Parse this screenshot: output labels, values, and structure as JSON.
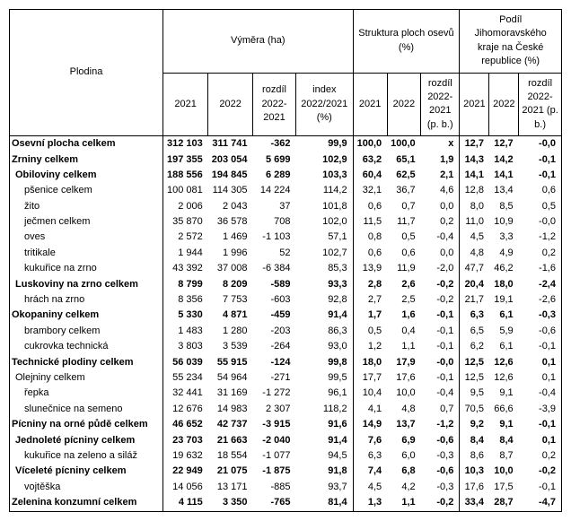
{
  "header": {
    "corner": "Plodina",
    "groups": [
      {
        "label": "Výměra (ha)",
        "cols": [
          "2021",
          "2022",
          "rozdíl 2022-2021",
          "index 2022/2021 (%)"
        ]
      },
      {
        "label": "Struktura ploch osevů (%)",
        "cols": [
          "2021",
          "2022",
          "rozdíl 2022-2021 (p. b.)"
        ]
      },
      {
        "label": "Podíl Jihomoravského kraje na České republice (%)",
        "cols": [
          "2021",
          "2022",
          "rozdíl 2022-2021 (p. b.)"
        ]
      }
    ]
  },
  "rows": [
    {
      "name": "Osevní plocha celkem",
      "bold": true,
      "indent": 0,
      "v": [
        "312 103",
        "311 741",
        "-362",
        "99,9",
        "100,0",
        "100,0",
        "x",
        "12,7",
        "12,7",
        "-0,0"
      ]
    },
    {
      "name": "Zrniny celkem",
      "bold": true,
      "indent": 0,
      "v": [
        "197 355",
        "203 054",
        "5 699",
        "102,9",
        "63,2",
        "65,1",
        "1,9",
        "14,3",
        "14,2",
        "-0,1"
      ]
    },
    {
      "name": "Obiloviny celkem",
      "bold": true,
      "indent": 1,
      "v": [
        "188 556",
        "194 845",
        "6 289",
        "103,3",
        "60,4",
        "62,5",
        "2,1",
        "14,1",
        "14,1",
        "-0,1"
      ]
    },
    {
      "name": "pšenice celkem",
      "bold": false,
      "indent": 2,
      "v": [
        "100 081",
        "114 305",
        "14 224",
        "114,2",
        "32,1",
        "36,7",
        "4,6",
        "12,8",
        "13,4",
        "0,6"
      ]
    },
    {
      "name": "žito",
      "bold": false,
      "indent": 2,
      "v": [
        "2 006",
        "2 043",
        "37",
        "101,8",
        "0,6",
        "0,7",
        "0,0",
        "8,0",
        "8,5",
        "0,5"
      ]
    },
    {
      "name": "ječmen celkem",
      "bold": false,
      "indent": 2,
      "v": [
        "35 870",
        "36 578",
        "708",
        "102,0",
        "11,5",
        "11,7",
        "0,2",
        "11,0",
        "10,9",
        "-0,0"
      ]
    },
    {
      "name": "oves",
      "bold": false,
      "indent": 2,
      "v": [
        "2 572",
        "1 469",
        "-1 103",
        "57,1",
        "0,8",
        "0,5",
        "-0,4",
        "4,5",
        "3,3",
        "-1,2"
      ]
    },
    {
      "name": "tritikale",
      "bold": false,
      "indent": 2,
      "v": [
        "1 944",
        "1 996",
        "52",
        "102,7",
        "0,6",
        "0,6",
        "0,0",
        "4,8",
        "4,9",
        "0,2"
      ]
    },
    {
      "name": "kukuřice na zrno",
      "bold": false,
      "indent": 2,
      "v": [
        "43 392",
        "37 008",
        "-6 384",
        "85,3",
        "13,9",
        "11,9",
        "-2,0",
        "47,7",
        "46,2",
        "-1,6"
      ]
    },
    {
      "name": "Luskoviny na zrno celkem",
      "bold": true,
      "indent": 1,
      "v": [
        "8 799",
        "8 209",
        "-589",
        "93,3",
        "2,8",
        "2,6",
        "-0,2",
        "20,4",
        "18,0",
        "-2,4"
      ]
    },
    {
      "name": "hrách na zrno",
      "bold": false,
      "indent": 2,
      "v": [
        "8 356",
        "7 753",
        "-603",
        "92,8",
        "2,7",
        "2,5",
        "-0,2",
        "21,7",
        "19,1",
        "-2,6"
      ]
    },
    {
      "name": "Okopaniny celkem",
      "bold": true,
      "indent": 0,
      "v": [
        "5 330",
        "4 871",
        "-459",
        "91,4",
        "1,7",
        "1,6",
        "-0,1",
        "6,3",
        "6,1",
        "-0,3"
      ]
    },
    {
      "name": "brambory celkem",
      "bold": false,
      "indent": 2,
      "v": [
        "1 483",
        "1 280",
        "-203",
        "86,3",
        "0,5",
        "0,4",
        "-0,1",
        "6,5",
        "5,9",
        "-0,6"
      ]
    },
    {
      "name": "cukrovka technická",
      "bold": false,
      "indent": 2,
      "v": [
        "3 803",
        "3 539",
        "-264",
        "93,0",
        "1,2",
        "1,1",
        "-0,1",
        "6,2",
        "6,1",
        "-0,1"
      ]
    },
    {
      "name": "Technické plodiny celkem",
      "bold": true,
      "indent": 0,
      "v": [
        "56 039",
        "55 915",
        "-124",
        "99,8",
        "18,0",
        "17,9",
        "-0,0",
        "12,5",
        "12,6",
        "0,1"
      ]
    },
    {
      "name": "Olejniny celkem",
      "bold": false,
      "indent": 1,
      "v": [
        "55 234",
        "54 964",
        "-271",
        "99,5",
        "17,7",
        "17,6",
        "-0,1",
        "12,5",
        "12,6",
        "0,1"
      ]
    },
    {
      "name": "řepka",
      "bold": false,
      "indent": 2,
      "v": [
        "32 441",
        "31 169",
        "-1 272",
        "96,1",
        "10,4",
        "10,0",
        "-0,4",
        "9,5",
        "9,1",
        "-0,4"
      ]
    },
    {
      "name": "slunečnice na semeno",
      "bold": false,
      "indent": 2,
      "v": [
        "12 676",
        "14 983",
        "2 307",
        "118,2",
        "4,1",
        "4,8",
        "0,7",
        "70,5",
        "66,6",
        "-3,9"
      ]
    },
    {
      "name": "Pícniny na orné půdě celkem",
      "bold": true,
      "indent": 0,
      "v": [
        "46 652",
        "42 737",
        "-3 915",
        "91,6",
        "14,9",
        "13,7",
        "-1,2",
        "9,2",
        "9,1",
        "-0,1"
      ]
    },
    {
      "name": "Jednoleté pícniny celkem",
      "bold": true,
      "indent": 1,
      "v": [
        "23 703",
        "21 663",
        "-2 040",
        "91,4",
        "7,6",
        "6,9",
        "-0,6",
        "8,4",
        "8,4",
        "0,1"
      ]
    },
    {
      "name": "kukuřice na zeleno a siláž",
      "bold": false,
      "indent": 2,
      "v": [
        "19 632",
        "18 554",
        "-1 077",
        "94,5",
        "6,3",
        "6,0",
        "-0,3",
        "8,6",
        "8,7",
        "0,2"
      ]
    },
    {
      "name": "Víceleté pícniny celkem",
      "bold": true,
      "indent": 1,
      "v": [
        "22 949",
        "21 075",
        "-1 875",
        "91,8",
        "7,4",
        "6,8",
        "-0,6",
        "10,3",
        "10,0",
        "-0,2"
      ]
    },
    {
      "name": "vojtěška",
      "bold": false,
      "indent": 2,
      "v": [
        "14 056",
        "13 171",
        "-885",
        "93,7",
        "4,5",
        "4,2",
        "-0,3",
        "17,6",
        "17,5",
        "-0,1"
      ]
    },
    {
      "name": "Zelenina konzumní celkem",
      "bold": true,
      "indent": 0,
      "v": [
        "4 115",
        "3 350",
        "-765",
        "81,4",
        "1,3",
        "1,1",
        "-0,2",
        "33,4",
        "28,7",
        "-4,7"
      ]
    }
  ]
}
